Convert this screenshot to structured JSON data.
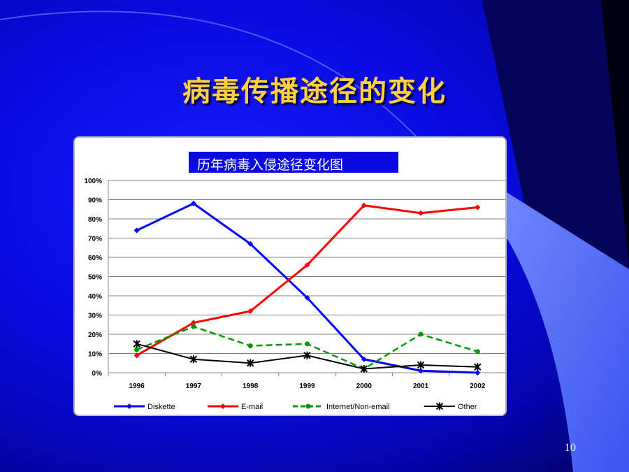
{
  "slide": {
    "title": "病毒传播途径的变化",
    "page_number": "10"
  },
  "chart_data": {
    "type": "line",
    "title": "历年病毒入侵途径变化图",
    "x": [
      "1996",
      "1997",
      "1998",
      "1999",
      "2000",
      "2001",
      "2002"
    ],
    "ylim": [
      0,
      100
    ],
    "yticks": [
      "0%",
      "10%",
      "20%",
      "30%",
      "40%",
      "50%",
      "60%",
      "70%",
      "80%",
      "90%",
      "100%"
    ],
    "grid": true,
    "legend_position": "bottom",
    "series": [
      {
        "name": "Diskette",
        "color": "#0000ff",
        "dash": "solid",
        "marker": "diamond",
        "values": [
          74,
          88,
          67,
          39,
          7,
          1,
          0
        ]
      },
      {
        "name": "E-mail",
        "color": "#ff0000",
        "dash": "solid",
        "marker": "diamond",
        "values": [
          9,
          26,
          32,
          56,
          87,
          83,
          86
        ]
      },
      {
        "name": "Internet/Non-email",
        "color": "#009900",
        "dash": "dashed",
        "marker": "circle",
        "values": [
          12,
          24,
          14,
          15,
          2,
          20,
          11
        ]
      },
      {
        "name": "Other",
        "color": "#000000",
        "dash": "solid",
        "marker": "star",
        "values": [
          15,
          7,
          5,
          9,
          2,
          4,
          3
        ]
      }
    ]
  }
}
